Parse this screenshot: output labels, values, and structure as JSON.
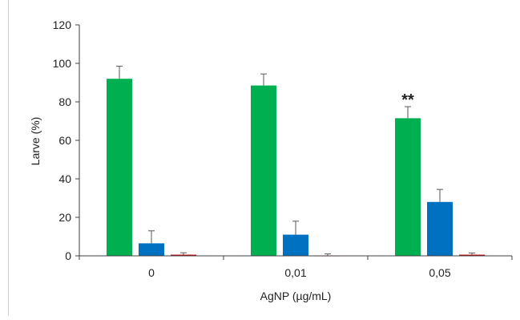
{
  "chart_data": {
    "type": "bar",
    "title": "",
    "xlabel": "AgNP (µg/mL)",
    "ylabel": "Larve (%)",
    "ylim": [
      0,
      120
    ],
    "yticks": [
      "0",
      "20",
      "40",
      "60",
      "80",
      "100",
      "120"
    ],
    "categories": [
      "0",
      "0,01",
      "0,05"
    ],
    "grid": false,
    "legend": "none",
    "series": [
      {
        "color": "#00b050",
        "values": [
          92,
          88.5,
          71.5
        ],
        "errors": [
          6.5,
          6,
          6
        ]
      },
      {
        "color": "#0070c0",
        "values": [
          6.5,
          11,
          28
        ],
        "errors": [
          6.5,
          7,
          6.5
        ]
      },
      {
        "color": "#c00000",
        "values": [
          0.6,
          0.1,
          0.6
        ],
        "errors": [
          1,
          0.9,
          0.9
        ]
      }
    ],
    "annotations": [
      {
        "text": "**",
        "category": "0,05",
        "series": 0
      }
    ]
  }
}
